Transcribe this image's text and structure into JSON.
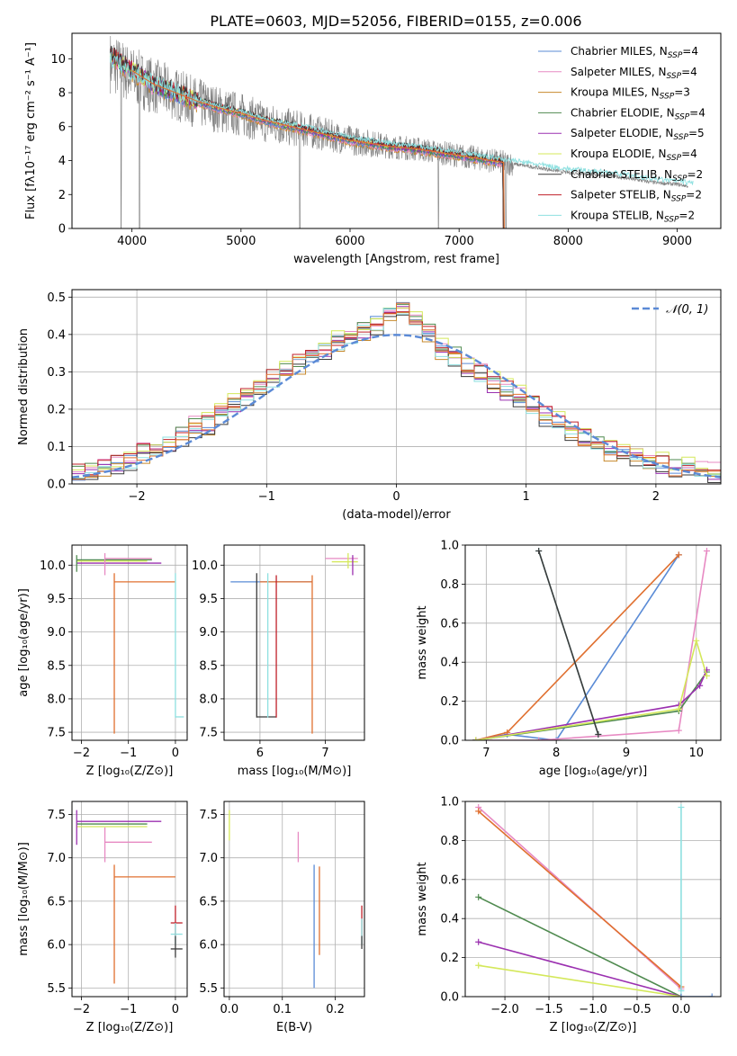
{
  "figure_title": "PLATE=0603, MJD=52056, FIBERID=0155, z=0.006",
  "series_colors": [
    "#5a8bd6",
    "#e78ac3",
    "#c7892c",
    "#4f8a4f",
    "#9b30b0",
    "#d4e85a",
    "#3a3a3a",
    "#c0202a",
    "#8ee0e0"
  ],
  "orange_color": "#e07030",
  "obs_color": "#808080",
  "legend": [
    {
      "base": "Chabrier MILES, N",
      "sub": "SSP",
      "suffix": "=4"
    },
    {
      "base": "Salpeter MILES, N",
      "sub": "SSP",
      "suffix": "=4"
    },
    {
      "base": "Kroupa MILES, N",
      "sub": "SSP",
      "suffix": "=3"
    },
    {
      "base": "Chabrier ELODIE, N",
      "sub": "SSP",
      "suffix": "=4"
    },
    {
      "base": "Salpeter ELODIE, N",
      "sub": "SSP",
      "suffix": "=5"
    },
    {
      "base": "Kroupa ELODIE, N",
      "sub": "SSP",
      "suffix": "=4"
    },
    {
      "base": "Chabrier STELIB, N",
      "sub": "SSP",
      "suffix": "=2"
    },
    {
      "base": "Salpeter STELIB, N",
      "sub": "SSP",
      "suffix": "=2"
    },
    {
      "base": "Kroupa STELIB, N",
      "sub": "SSP",
      "suffix": "=2"
    }
  ],
  "chart_data": [
    {
      "type": "line",
      "id": "spectrum",
      "xlabel": "wavelength [Angstrom, rest frame]",
      "ylabel": "Flux [fλ10⁻¹⁷ erg cm⁻² s⁻¹ A⁻¹]",
      "xlim": [
        3450,
        9400
      ],
      "ylim": [
        0,
        11.5
      ],
      "xticks": [
        4000,
        5000,
        6000,
        7000,
        8000,
        9000
      ],
      "yticks": [
        0,
        2,
        4,
        6,
        8,
        10
      ],
      "observed": {
        "x": [
          3800,
          4000,
          4200,
          4400,
          4600,
          4800,
          5000,
          5200,
          5400,
          5600,
          5800,
          6000,
          6200,
          6400,
          6600,
          6800,
          7000,
          7200,
          7400,
          7600,
          7800,
          8000,
          8200,
          8400,
          8600,
          8800,
          9000,
          9100
        ],
        "y": [
          9.8,
          9.0,
          8.4,
          7.9,
          7.4,
          7.0,
          6.7,
          6.3,
          6.0,
          5.8,
          5.5,
          5.2,
          5.0,
          4.8,
          4.7,
          4.5,
          4.3,
          4.1,
          3.9,
          3.7,
          3.5,
          3.3,
          3.2,
          3.1,
          2.9,
          2.7,
          2.6,
          2.5
        ]
      },
      "model": {
        "x": [
          3800,
          4000,
          4200,
          4400,
          4600,
          4800,
          5000,
          5200,
          5400,
          5600,
          5800,
          6000,
          6200,
          6400,
          6600,
          6800,
          7000,
          7200,
          7400
        ],
        "y": [
          10.2,
          9.3,
          8.5,
          8.0,
          7.5,
          7.1,
          6.8,
          6.4,
          6.1,
          5.8,
          5.5,
          5.2,
          5.0,
          4.8,
          4.7,
          4.5,
          4.3,
          4.1,
          3.9
        ]
      },
      "dropouts": [
        3900,
        4070,
        5540,
        6810,
        7430
      ]
    },
    {
      "type": "line",
      "id": "residuals",
      "xlabel": "(data-model)/error",
      "ylabel": "Normed distribution",
      "xlim": [
        -2.5,
        2.5
      ],
      "ylim": [
        0,
        0.52
      ],
      "xticks": [
        -2,
        -1,
        0,
        1,
        2
      ],
      "yticks": [
        0.0,
        0.1,
        0.2,
        0.3,
        0.4,
        0.5
      ],
      "normal_label": "𝒩(0, 1)",
      "hist_centers": [
        -2.45,
        -2.35,
        -2.25,
        -2.15,
        -2.05,
        -1.95,
        -1.85,
        -1.75,
        -1.65,
        -1.55,
        -1.45,
        -1.35,
        -1.25,
        -1.15,
        -1.05,
        -0.95,
        -0.85,
        -0.75,
        -0.65,
        -0.55,
        -0.45,
        -0.35,
        -0.25,
        -0.15,
        -0.05,
        0.05,
        0.15,
        0.25,
        0.35,
        0.45,
        0.55,
        0.65,
        0.75,
        0.85,
        0.95,
        1.05,
        1.15,
        1.25,
        1.35,
        1.45,
        1.55,
        1.65,
        1.75,
        1.85,
        1.95,
        2.05,
        2.15,
        2.25,
        2.35,
        2.45
      ],
      "hist_base": [
        0.03,
        0.03,
        0.04,
        0.05,
        0.06,
        0.08,
        0.09,
        0.11,
        0.13,
        0.15,
        0.16,
        0.19,
        0.21,
        0.24,
        0.26,
        0.28,
        0.3,
        0.32,
        0.34,
        0.36,
        0.38,
        0.4,
        0.41,
        0.43,
        0.46,
        0.47,
        0.44,
        0.4,
        0.36,
        0.34,
        0.31,
        0.29,
        0.27,
        0.25,
        0.23,
        0.21,
        0.18,
        0.16,
        0.14,
        0.12,
        0.1,
        0.09,
        0.08,
        0.07,
        0.06,
        0.05,
        0.04,
        0.04,
        0.03,
        0.03
      ]
    },
    {
      "type": "scatter",
      "id": "age_vs_Z",
      "xlabel": "Z [log₁₀(Z/Z⊙)]",
      "ylabel": "age  [log₁₀(age/yr)]",
      "xlim": [
        -2.2,
        0.25
      ],
      "ylim": [
        7.38,
        10.3
      ],
      "xticks": [
        -2,
        -1,
        0
      ],
      "yticks": [
        7.5,
        8.0,
        8.5,
        9.0,
        9.5,
        10.0
      ],
      "h_segments": [
        {
          "c": 3,
          "x0": -2.1,
          "x1": -0.5,
          "y": 10.08
        },
        {
          "c": 4,
          "x0": -2.1,
          "x1": -0.3,
          "y": 10.03
        },
        {
          "c": 5,
          "x0": -2.1,
          "x1": -0.6,
          "y": 10.06
        },
        {
          "c": 1,
          "x0": -1.5,
          "x1": -0.5,
          "y": 10.1
        },
        {
          "c": "o",
          "x0": -1.3,
          "x1": 0.0,
          "y": 9.75
        },
        {
          "c": 8,
          "x0": 0.0,
          "x1": 0.18,
          "y": 7.73
        }
      ],
      "v_segments": [
        {
          "c": 3,
          "x": -2.1,
          "y0": 9.9,
          "y1": 10.15
        },
        {
          "c": 1,
          "x": -1.5,
          "y0": 9.85,
          "y1": 10.18
        },
        {
          "c": "o",
          "x": -1.3,
          "y0": 7.48,
          "y1": 9.88
        },
        {
          "c": 8,
          "x": 0.0,
          "y0": 7.72,
          "y1": 9.88
        }
      ]
    },
    {
      "type": "scatter",
      "id": "age_vs_mass",
      "xlabel": "mass [log₁₀(M/M⊙)]",
      "ylabel": "",
      "xlim": [
        5.45,
        7.6
      ],
      "ylim": [
        7.38,
        10.3
      ],
      "xticks": [
        6,
        7
      ],
      "yticks": [
        7.5,
        8.0,
        8.5,
        9.0,
        9.5,
        10.0
      ],
      "h_segments": [
        {
          "c": 0,
          "x0": 5.55,
          "x1": 6.8,
          "y": 9.75
        },
        {
          "c": "o",
          "x0": 6.0,
          "x1": 6.8,
          "y": 9.75
        },
        {
          "c": 6,
          "x0": 5.95,
          "x1": 6.25,
          "y": 7.73
        },
        {
          "c": 1,
          "x0": 7.0,
          "x1": 7.5,
          "y": 10.1
        },
        {
          "c": 5,
          "x0": 7.1,
          "x1": 7.5,
          "y": 10.05
        }
      ],
      "v_segments": [
        {
          "c": 6,
          "x": 5.95,
          "y0": 7.72,
          "y1": 9.88
        },
        {
          "c": 8,
          "x": 6.12,
          "y0": 7.72,
          "y1": 9.88
        },
        {
          "c": 7,
          "x": 6.25,
          "y0": 7.72,
          "y1": 9.85
        },
        {
          "c": "o",
          "x": 6.8,
          "y0": 7.48,
          "y1": 9.85
        },
        {
          "c": 4,
          "x": 7.42,
          "y0": 9.85,
          "y1": 10.15
        },
        {
          "c": 5,
          "x": 7.35,
          "y0": 9.95,
          "y1": 10.18
        }
      ]
    },
    {
      "type": "line",
      "id": "weight_vs_age",
      "xlabel": "age  [log₁₀(age/yr)]",
      "ylabel": "mass weight",
      "xlim": [
        6.7,
        10.35
      ],
      "ylim": [
        0,
        1
      ],
      "xticks": [
        7,
        8,
        9,
        10
      ],
      "yticks": [
        0.0,
        0.2,
        0.4,
        0.6,
        0.8,
        1.0
      ],
      "series": [
        {
          "c": 0,
          "x": [
            6.85,
            7.3,
            8.0,
            9.75
          ],
          "y": [
            0.0,
            0.03,
            0.0,
            0.95
          ]
        },
        {
          "c": 1,
          "x": [
            6.85,
            7.75,
            9.75,
            10.15
          ],
          "y": [
            0.0,
            0.0,
            0.05,
            0.97
          ]
        },
        {
          "c": "o",
          "x": [
            6.85,
            7.3,
            9.75
          ],
          "y": [
            0.0,
            0.04,
            0.95
          ]
        },
        {
          "c": 3,
          "x": [
            6.85,
            9.75,
            10.15
          ],
          "y": [
            0.0,
            0.15,
            0.35
          ]
        },
        {
          "c": 4,
          "x": [
            6.85,
            9.75,
            10.05,
            10.15
          ],
          "y": [
            0.0,
            0.18,
            0.28,
            0.36
          ]
        },
        {
          "c": 5,
          "x": [
            6.85,
            9.75,
            10.0,
            10.15
          ],
          "y": [
            0.0,
            0.16,
            0.51,
            0.33
          ]
        },
        {
          "c": 8,
          "x": [
            7.75,
            8.6
          ],
          "y": [
            0.97,
            0.03
          ]
        },
        {
          "c": 6,
          "x": [
            7.75,
            8.6
          ],
          "y": [
            0.97,
            0.03
          ]
        }
      ]
    },
    {
      "type": "scatter",
      "id": "mass_vs_Z",
      "xlabel": "Z [log₁₀(Z/Z⊙)]",
      "ylabel": "mass [log₁₀(M/M⊙)]",
      "xlim": [
        -2.2,
        0.25
      ],
      "ylim": [
        5.4,
        7.65
      ],
      "xticks": [
        -2,
        -1,
        0
      ],
      "yticks": [
        5.5,
        6.0,
        6.5,
        7.0,
        7.5
      ],
      "h_segments": [
        {
          "c": 4,
          "x0": -2.1,
          "x1": -0.3,
          "y": 7.42
        },
        {
          "c": 3,
          "x0": -2.1,
          "x1": -0.6,
          "y": 7.39
        },
        {
          "c": 5,
          "x0": -2.1,
          "x1": -0.6,
          "y": 7.36
        },
        {
          "c": 1,
          "x0": -1.5,
          "x1": -0.5,
          "y": 7.18
        },
        {
          "c": "o",
          "x0": -1.3,
          "x1": 0.0,
          "y": 6.78
        },
        {
          "c": 7,
          "x0": -0.1,
          "x1": 0.15,
          "y": 6.25
        },
        {
          "c": 8,
          "x0": -0.1,
          "x1": 0.15,
          "y": 6.12
        },
        {
          "c": 6,
          "x0": -0.1,
          "x1": 0.15,
          "y": 5.95
        }
      ],
      "v_segments": [
        {
          "c": 4,
          "x": -2.1,
          "y0": 7.15,
          "y1": 7.55
        },
        {
          "c": 1,
          "x": -1.5,
          "y0": 6.95,
          "y1": 7.35
        },
        {
          "c": "o",
          "x": -1.3,
          "y0": 5.55,
          "y1": 6.92
        },
        {
          "c": 7,
          "x": 0.0,
          "y0": 6.1,
          "y1": 6.45
        },
        {
          "c": 8,
          "x": 0.0,
          "y0": 6.0,
          "y1": 6.25
        },
        {
          "c": 6,
          "x": 0.0,
          "y0": 5.85,
          "y1": 6.1
        }
      ]
    },
    {
      "type": "scatter",
      "id": "mass_vs_EBV",
      "xlabel": "E(B-V)",
      "ylabel": "",
      "xlim": [
        -0.01,
        0.255
      ],
      "ylim": [
        5.4,
        7.65
      ],
      "xticks": [
        0.0,
        0.1,
        0.2
      ],
      "yticks": [
        5.5,
        6.0,
        6.5,
        7.0,
        7.5
      ],
      "v_segments": [
        {
          "c": 5,
          "x": 0.0,
          "y0": 7.2,
          "y1": 7.55
        },
        {
          "c": 1,
          "x": 0.13,
          "y0": 6.95,
          "y1": 7.3
        },
        {
          "c": 0,
          "x": 0.16,
          "y0": 5.5,
          "y1": 6.92
        },
        {
          "c": "o",
          "x": 0.17,
          "y0": 5.88,
          "y1": 6.9
        },
        {
          "c": 7,
          "x": 0.25,
          "y0": 6.1,
          "y1": 6.45
        },
        {
          "c": 8,
          "x": 0.25,
          "y0": 6.0,
          "y1": 6.3
        },
        {
          "c": 6,
          "x": 0.25,
          "y0": 5.95,
          "y1": 6.1
        }
      ]
    },
    {
      "type": "line",
      "id": "weight_vs_Z",
      "xlabel": "Z [log₁₀(Z/Z⊙)]",
      "ylabel": "mass weight",
      "xlim": [
        -2.45,
        0.45
      ],
      "ylim": [
        0,
        1
      ],
      "xticks": [
        -2.0,
        -1.5,
        -1.0,
        -0.5,
        0.0
      ],
      "yticks": [
        0.0,
        0.2,
        0.4,
        0.6,
        0.8,
        1.0
      ],
      "series": [
        {
          "c": 1,
          "x": [
            -2.3,
            0.0
          ],
          "y": [
            0.97,
            0.04
          ]
        },
        {
          "c": "o",
          "x": [
            -2.3,
            0.0
          ],
          "y": [
            0.95,
            0.05
          ]
        },
        {
          "c": 3,
          "x": [
            -2.3,
            0.0
          ],
          "y": [
            0.51,
            0.0
          ]
        },
        {
          "c": 4,
          "x": [
            -2.3,
            0.0
          ],
          "y": [
            0.28,
            0.0
          ]
        },
        {
          "c": 5,
          "x": [
            -2.3,
            0.0
          ],
          "y": [
            0.16,
            0.0
          ]
        },
        {
          "c": 0,
          "x": [
            0.0,
            0.35
          ],
          "y": [
            0.0,
            0.0
          ]
        },
        {
          "c": 8,
          "x": [
            0.0,
            0.0
          ],
          "y": [
            0.03,
            0.97
          ]
        }
      ]
    }
  ]
}
